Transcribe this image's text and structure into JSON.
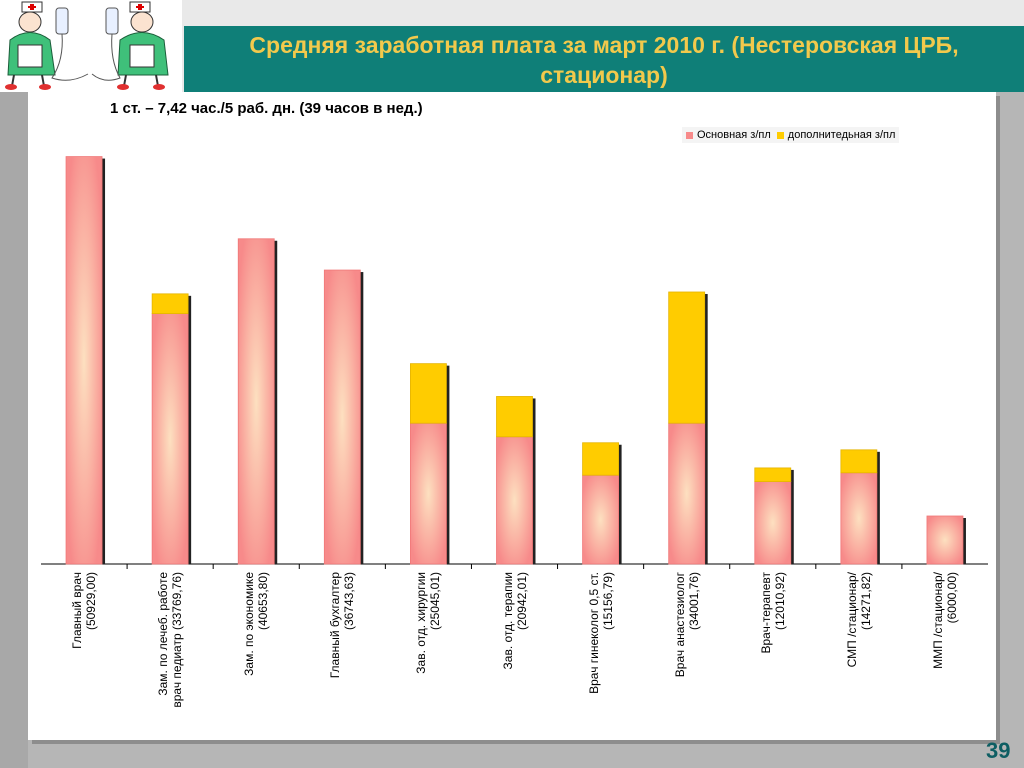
{
  "header": {
    "title": "Средняя заработная плата за март 2010 г. (Нестеровская ЦРБ, стационар)",
    "logo_icon": "nurses-with-iv-drip-icon"
  },
  "page_number": "39",
  "colors": {
    "main": "#f78a8a",
    "main_center": "#fde0c0",
    "additional": "#ffcc00",
    "title": "#f2c94c",
    "band": "#0f7f78"
  },
  "chart_data": {
    "type": "bar",
    "stacked": true,
    "subtitle": "1 ст. – 7,42 час./5 раб. дн. (39 часов в нед.)",
    "legend_position": "top-right",
    "grid": false,
    "ylim": [
      0,
      52000
    ],
    "categories": [
      [
        "Главный врач",
        "(50929,00)"
      ],
      [
        "Зам. по лечеб. работе",
        "врач педиатр (33769,76)"
      ],
      [
        "Зам. по экономике",
        "(40653,80)"
      ],
      [
        "Главный бухгалтер",
        "(36743,63)"
      ],
      [
        "Зав. отд. хирургии",
        "(25045,01)"
      ],
      [
        "Зав. отд. терапии",
        "(20942,01)"
      ],
      [
        "Врач гинеколог 0,5 ст.",
        "(15156,79)"
      ],
      [
        "Врач анастезиолог",
        "(34001,76)"
      ],
      [
        "Врач-терапевт",
        "(12010,92)"
      ],
      [
        "СМП /стационар/",
        "(14271,82)"
      ],
      [
        "ММП /стационар/",
        "(6000,00)"
      ]
    ],
    "series": [
      {
        "name": "Основная з/пл",
        "values": [
          50929,
          31300,
          40654,
          36744,
          17600,
          15900,
          11100,
          17600,
          10300,
          11400,
          6000
        ]
      },
      {
        "name": "дополнитедьная з/пл",
        "values": [
          0,
          2470,
          0,
          0,
          7445,
          5042,
          4057,
          16402,
          1711,
          2872,
          0
        ]
      }
    ]
  }
}
